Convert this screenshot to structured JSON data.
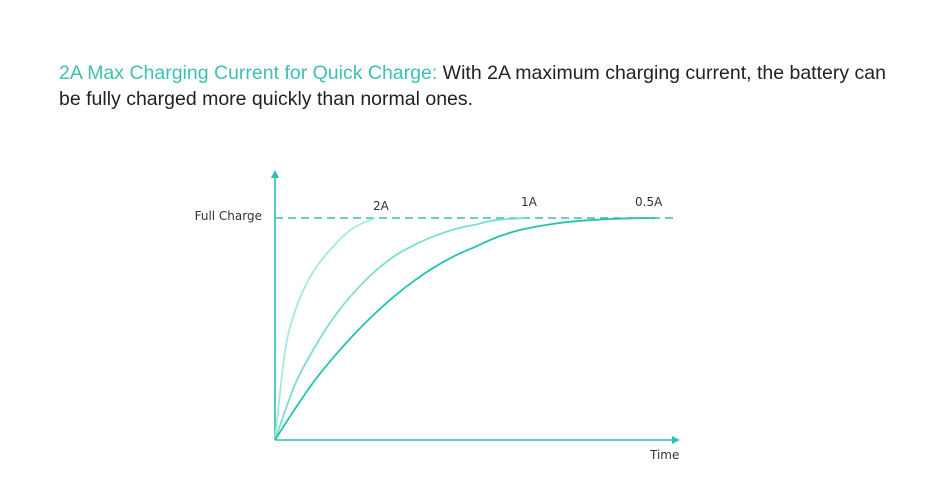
{
  "headline": {
    "accent_text": "2A Max Charging Current for Quick Charge:",
    "body_text": " With 2A maximum charging current, the battery can be fully charged more quickly than normal ones."
  },
  "colors": {
    "accent": "#3fbfb2",
    "axis": "#2bbfb0",
    "text": "#222222"
  },
  "chart_data": {
    "type": "line",
    "title": "",
    "xlabel": "Time",
    "ylabel": "",
    "full_charge_label": "Full Charge",
    "xlim": [
      0,
      1
    ],
    "ylim": [
      0,
      1
    ],
    "grid": false,
    "series": [
      {
        "name": "2A",
        "color": "#a6e9e1",
        "x": [
          0,
          0.025,
          0.05,
          0.075,
          0.1,
          0.125,
          0.15,
          0.175,
          0.2,
          0.25
        ],
        "y": [
          0,
          0.4,
          0.58,
          0.69,
          0.77,
          0.83,
          0.88,
          0.925,
          0.96,
          1.0
        ]
      },
      {
        "name": "1A",
        "color": "#7cddd2",
        "x": [
          0,
          0.05,
          0.1,
          0.15,
          0.2,
          0.25,
          0.3,
          0.35,
          0.4,
          0.45,
          0.5,
          0.55,
          0.625
        ],
        "y": [
          0,
          0.25,
          0.42,
          0.56,
          0.67,
          0.76,
          0.83,
          0.88,
          0.92,
          0.95,
          0.97,
          0.99,
          1.0
        ]
      },
      {
        "name": "0.5A",
        "color": "#26c1b2",
        "x": [
          0,
          0.05,
          0.1,
          0.15,
          0.2,
          0.25,
          0.3,
          0.35,
          0.4,
          0.45,
          0.5,
          0.55,
          0.6,
          0.65,
          0.7,
          0.75,
          0.8,
          0.85,
          0.9,
          0.95
        ],
        "y": [
          0,
          0.14,
          0.27,
          0.38,
          0.48,
          0.57,
          0.65,
          0.72,
          0.78,
          0.83,
          0.87,
          0.91,
          0.94,
          0.96,
          0.975,
          0.985,
          0.992,
          0.996,
          0.999,
          1.0
        ]
      }
    ]
  }
}
